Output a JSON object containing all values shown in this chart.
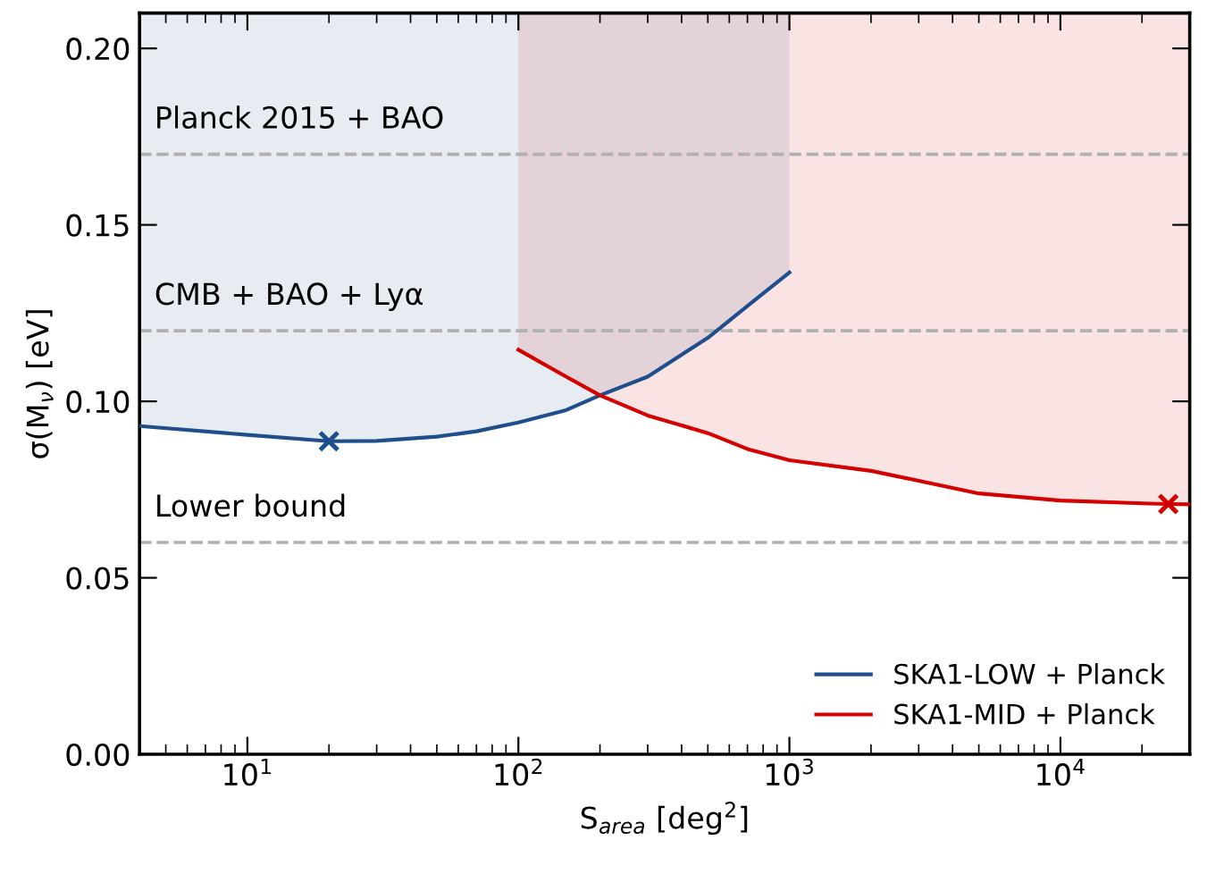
{
  "chart_data": {
    "type": "line",
    "xlabel": "S$_{area}$ [deg$^{2}$]",
    "ylabel": "σ(M$_{ν}$) [eV]",
    "log": "x",
    "xlim": [
      4,
      30000
    ],
    "xticks": [
      {
        "value": 10,
        "label": "10$^{1}$"
      },
      {
        "value": 100,
        "label": "10$^{2}$"
      },
      {
        "value": 1000,
        "label": "10$^{3}$"
      },
      {
        "value": 10000,
        "label": "10$^{4}$"
      }
    ],
    "ylim": [
      0,
      0.21
    ],
    "yticks": [
      {
        "value": 0,
        "label": "0.00"
      },
      {
        "value": 0.05,
        "label": "0.05"
      },
      {
        "value": 0.1,
        "label": "0.10"
      },
      {
        "value": 0.15,
        "label": "0.15"
      },
      {
        "value": 0.2,
        "label": "0.20"
      }
    ],
    "series": [
      {
        "name": "SKA1-LOW + Planck",
        "color": "#1f4e8c",
        "x": [
          4,
          10,
          20,
          30,
          50,
          70,
          100,
          150,
          200,
          300,
          500,
          700,
          1000
        ],
        "values": [
          0.093,
          0.0905,
          0.0887,
          0.0888,
          0.09,
          0.0915,
          0.094,
          0.0975,
          0.1017,
          0.107,
          0.118,
          0.127,
          0.1365
        ],
        "lower": [
          0.093,
          0.0905,
          0.0887,
          0.0888,
          0.09,
          0.0915,
          0.094,
          0.0975,
          0.1017,
          0.107,
          0.118,
          0.127,
          0.1365
        ],
        "upper": [
          0.21,
          0.21,
          0.21,
          0.21,
          0.21,
          0.21,
          0.21,
          0.21,
          0.21,
          0.21,
          0.21,
          0.21,
          0.21
        ]
      },
      {
        "name": "SKA1-MID + Planck",
        "color": "#d40000",
        "x": [
          100,
          150,
          200,
          300,
          500,
          700,
          1000,
          2000,
          3000,
          5000,
          10000,
          20000,
          25000,
          30000
        ],
        "values": [
          0.1146,
          0.107,
          0.1017,
          0.096,
          0.091,
          0.0865,
          0.0833,
          0.0803,
          0.0775,
          0.0739,
          0.0719,
          0.0711,
          0.0709,
          0.0708
        ],
        "lower": [
          0.1146,
          0.107,
          0.1017,
          0.096,
          0.091,
          0.0865,
          0.0833,
          0.0803,
          0.0775,
          0.0739,
          0.0719,
          0.0711,
          0.0709,
          0.0708
        ],
        "upper": [
          0.21,
          0.21,
          0.21,
          0.21,
          0.21,
          0.21,
          0.21,
          0.21,
          0.21,
          0.21,
          0.21,
          0.21,
          0.21,
          0.21
        ]
      },
      {
        "type": "scatter",
        "color": "#1f4e8c",
        "marker": "cross",
        "x": [
          20
        ],
        "values": [
          0.0887
        ]
      },
      {
        "type": "scatter",
        "color": "#d40000",
        "marker": "cross",
        "x": [
          25000
        ],
        "values": [
          0.0709
        ]
      }
    ],
    "ref_lines": [
      {
        "axis": "y",
        "value": 0.17,
        "label": "Planck 2015 + BAO",
        "color": "#b0b0b0",
        "line_style": "dashed"
      },
      {
        "axis": "y",
        "value": 0.12,
        "label": "CMB + BAO + Lyα",
        "color": "#b0b0b0",
        "line_style": "dashed"
      },
      {
        "axis": "y",
        "value": 0.06,
        "label": "Lower bound",
        "color": "#b0b0b0",
        "line_style": "dashed"
      }
    ],
    "legend": "bottom right",
    "grid": false
  }
}
